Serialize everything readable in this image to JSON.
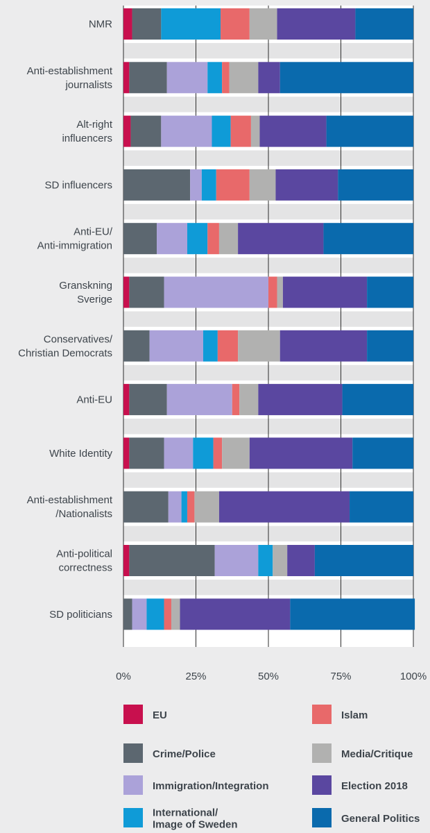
{
  "chart_data": {
    "type": "bar",
    "orientation": "horizontal",
    "stacked": true,
    "normalized": true,
    "categories": [
      [
        "NMR"
      ],
      [
        "Anti-establishment",
        "journalists"
      ],
      [
        "Alt-right",
        "influencers"
      ],
      [
        "SD influencers"
      ],
      [
        "Anti-EU/",
        "Anti-immigration"
      ],
      [
        "Granskning",
        "Sverige"
      ],
      [
        "Conservatives/",
        "Christian Democrats"
      ],
      [
        "Anti-EU"
      ],
      [
        "White Identity"
      ],
      [
        "Anti-establishment",
        "/Nationalists"
      ],
      [
        "Anti-political",
        "correctness"
      ],
      [
        "SD politicians"
      ]
    ],
    "series": [
      {
        "name": "EU",
        "color": "#c8104e",
        "values": [
          3,
          2,
          2.5,
          0,
          0,
          2,
          0,
          2,
          2,
          0,
          2,
          0
        ]
      },
      {
        "name": "Crime/Police",
        "color": "#5c6770",
        "values": [
          10,
          13,
          10.5,
          23,
          11.5,
          12,
          9,
          13,
          12,
          15.5,
          29.5,
          3
        ]
      },
      {
        "name": "Immigration/Integration",
        "color": "#aba2d9",
        "values": [
          0,
          14,
          17.5,
          4,
          10.5,
          36,
          18.5,
          22.5,
          10,
          4.5,
          15,
          5
        ]
      },
      {
        "name": "International/ Image of Sweden",
        "color": "#0f9bd7",
        "values": [
          20.5,
          5,
          6.5,
          5,
          7,
          0,
          5,
          0,
          7,
          2,
          5,
          6
        ]
      },
      {
        "name": "Islam",
        "color": "#e8696a",
        "values": [
          10,
          2.5,
          7,
          11.5,
          4,
          3,
          7,
          2.5,
          3,
          2.5,
          0,
          2.5
        ]
      },
      {
        "name": "Media/Critique",
        "color": "#b1b1b0",
        "values": [
          9.5,
          10,
          3,
          9,
          6.5,
          2,
          14.5,
          6.5,
          9.5,
          8.5,
          5,
          3
        ]
      },
      {
        "name": "Election 2018",
        "color": "#5a47a0",
        "values": [
          27,
          7.5,
          23,
          21.5,
          29.5,
          29,
          30,
          29,
          35.5,
          45,
          9.5,
          38
        ]
      },
      {
        "name": "General Politics",
        "color": "#0a6aad",
        "values": [
          20,
          46,
          30,
          26,
          31,
          16,
          16,
          24.5,
          21,
          22,
          34,
          43
        ]
      }
    ],
    "x_ticks": [
      "0%",
      "25%",
      "50%",
      "75%",
      "100%"
    ],
    "xlim": [
      0,
      100
    ],
    "grid": true,
    "legend_position": "bottom"
  }
}
